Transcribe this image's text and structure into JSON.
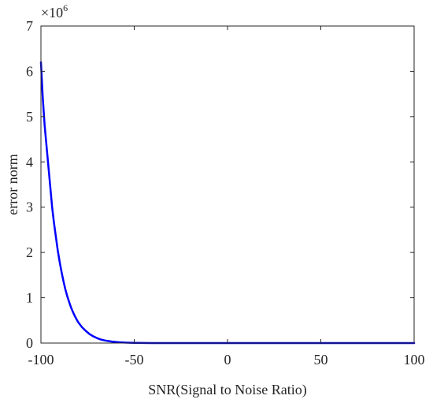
{
  "chart_data": {
    "type": "line",
    "title": "",
    "xlabel": "SNR(Signal to Noise Ratio)",
    "ylabel": "error norm",
    "xlim": [
      -100,
      100
    ],
    "ylim": [
      0,
      7
    ],
    "x_ticks": [
      -100,
      -50,
      0,
      50,
      100
    ],
    "x_tick_labels": [
      "-100",
      "-50",
      "0",
      "50",
      "100"
    ],
    "y_ticks": [
      0,
      1,
      2,
      3,
      4,
      5,
      6,
      7
    ],
    "y_tick_labels": [
      "0",
      "1",
      "2",
      "3",
      "4",
      "5",
      "6",
      "7"
    ],
    "y_multiplier_label": {
      "base": "×10",
      "exponent": "6"
    },
    "grid": false,
    "box": true,
    "line_color": "#0000ff",
    "series": [
      {
        "x": [
          -100,
          -99,
          -98,
          -97,
          -96,
          -95,
          -94,
          -93,
          -92,
          -91,
          -90,
          -89,
          -88,
          -87,
          -86,
          -85,
          -84,
          -83,
          -82,
          -81,
          -80,
          -78,
          -76,
          -74,
          -72,
          -70,
          -68,
          -66,
          -64,
          -62,
          -60,
          -58,
          -55,
          -52,
          -50,
          -45,
          -40,
          -35,
          -30,
          -20,
          -10,
          0,
          20,
          40,
          60,
          80,
          100
        ],
        "values": [
          6.2,
          5.4,
          4.8,
          4.35,
          3.9,
          3.45,
          3.0,
          2.65,
          2.35,
          2.05,
          1.8,
          1.58,
          1.38,
          1.2,
          1.05,
          0.92,
          0.8,
          0.7,
          0.61,
          0.53,
          0.46,
          0.35,
          0.27,
          0.2,
          0.15,
          0.11,
          0.08,
          0.06,
          0.045,
          0.033,
          0.025,
          0.018,
          0.011,
          0.007,
          0.005,
          0.002,
          0.001,
          0.0005,
          0.0003,
          0.0001,
          5e-05,
          2e-05,
          0.0,
          0.0,
          0.0,
          0.0,
          0.0
        ]
      }
    ]
  }
}
